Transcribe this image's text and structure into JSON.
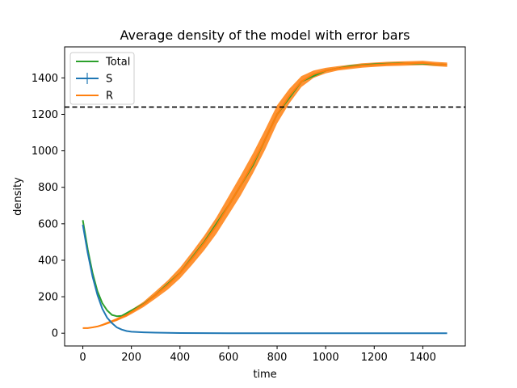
{
  "chart_data": {
    "type": "line",
    "title": "Average density of the model with error bars",
    "xlabel": "time",
    "ylabel": "density",
    "xlim": [
      -75,
      1575
    ],
    "ylim": [
      -70,
      1570
    ],
    "xticks": [
      0,
      200,
      400,
      600,
      800,
      1000,
      1200,
      1400
    ],
    "yticks": [
      0,
      200,
      400,
      600,
      800,
      1000,
      1200,
      1400
    ],
    "grid": false,
    "legend": "upper left",
    "reference_line": {
      "y": 1240,
      "style": "dashed",
      "color": "#000000"
    },
    "series": [
      {
        "name": "Total",
        "color": "#2ca02c",
        "x": [
          0,
          20,
          40,
          60,
          80,
          100,
          120,
          140,
          160,
          180,
          200,
          250,
          300,
          400,
          500,
          600,
          700,
          800,
          900,
          1000,
          1100,
          1200,
          1300,
          1400,
          1500
        ],
        "y": [
          620,
          460,
          330,
          230,
          165,
          125,
          100,
          93,
          95,
          110,
          125,
          160,
          210,
          330,
          500,
          700,
          920,
          1200,
          1380,
          1440,
          1465,
          1475,
          1480,
          1478,
          1472
        ]
      },
      {
        "name": "S",
        "color": "#1f77b4",
        "x": [
          0,
          20,
          40,
          60,
          80,
          100,
          120,
          140,
          160,
          180,
          200,
          250,
          300,
          400,
          600,
          800,
          1000,
          1200,
          1500
        ],
        "y": [
          595,
          440,
          310,
          210,
          135,
          85,
          55,
          32,
          20,
          12,
          8,
          5,
          3,
          1,
          0,
          0,
          0,
          0,
          0
        ],
        "error": [
          8,
          8,
          7,
          6,
          5,
          4,
          3,
          3,
          2,
          2,
          2,
          1,
          1,
          1,
          0,
          0,
          0,
          0,
          0
        ]
      },
      {
        "name": "R",
        "color": "#ff7f0e",
        "x": [
          0,
          20,
          40,
          60,
          80,
          100,
          120,
          140,
          160,
          180,
          200,
          250,
          300,
          350,
          400,
          450,
          500,
          550,
          600,
          650,
          700,
          750,
          800,
          850,
          900,
          950,
          1000,
          1050,
          1100,
          1150,
          1200,
          1250,
          1300,
          1350,
          1400,
          1450,
          1500
        ],
        "y": [
          28,
          28,
          32,
          37,
          45,
          55,
          65,
          75,
          88,
          100,
          117,
          158,
          210,
          265,
          330,
          410,
          495,
          590,
          700,
          810,
          930,
          1060,
          1200,
          1300,
          1380,
          1420,
          1440,
          1452,
          1460,
          1468,
          1472,
          1476,
          1478,
          1480,
          1482,
          1476,
          1472
        ],
        "error": [
          3,
          3,
          3,
          4,
          5,
          6,
          7,
          8,
          9,
          10,
          12,
          15,
          20,
          25,
          30,
          35,
          40,
          45,
          50,
          55,
          55,
          55,
          50,
          40,
          30,
          20,
          15,
          12,
          12,
          12,
          12,
          12,
          12,
          12,
          12,
          12,
          12
        ]
      }
    ]
  }
}
